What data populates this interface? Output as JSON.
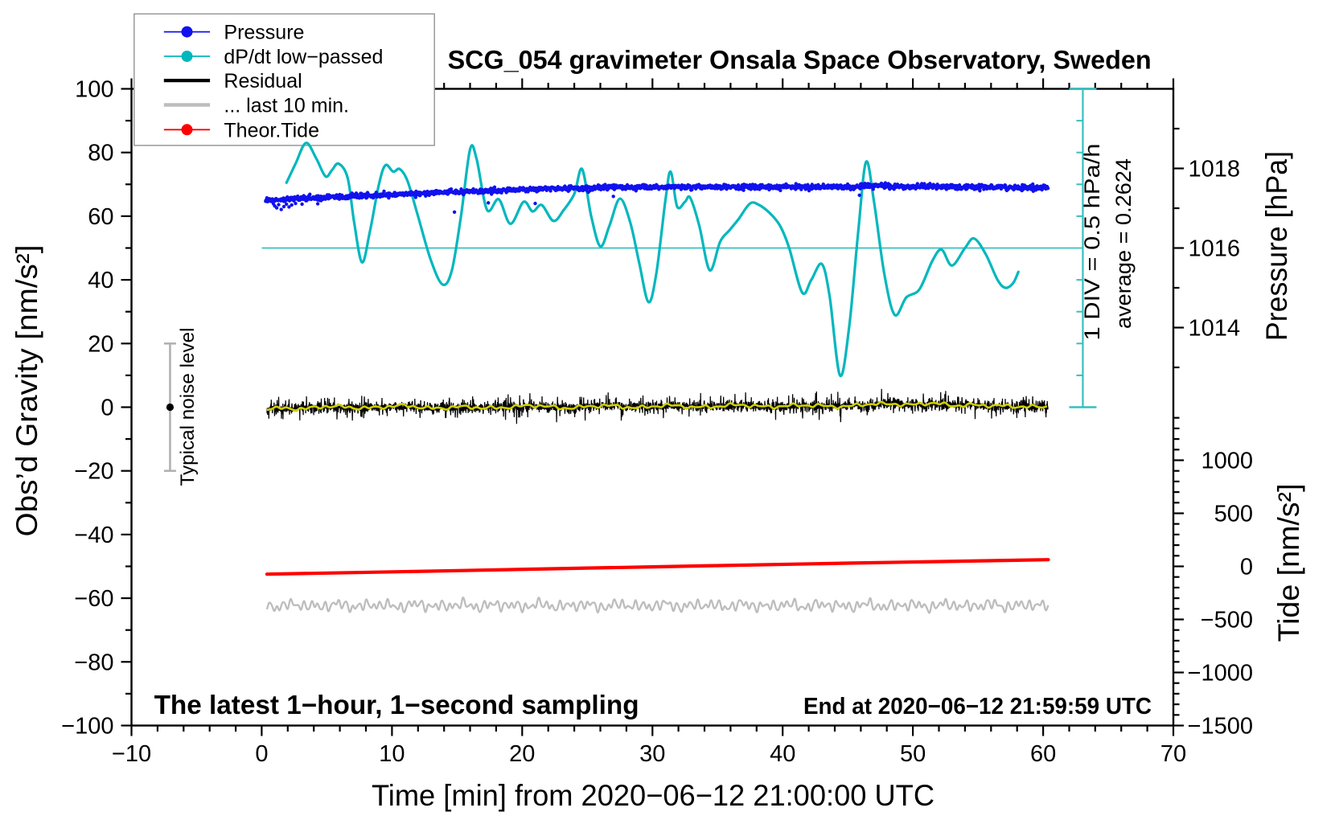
{
  "chart_data": {
    "type": "line",
    "title": "SCG_054 gravimeter Onsala Space Observatory, Sweden",
    "xlabel": "Time [min] from 2020−06−12 21:00:00 UTC",
    "ylabel_left": "Obs’d Gravity [nm/s²]",
    "ylabel_right_pressure": "Pressure [hPa]",
    "ylabel_right_tide": "Tide [nm/s²]",
    "annotation_bottom_left": "The latest 1−hour, 1−second sampling",
    "annotation_bottom_right": "End at 2020−06−12 21:59:59 UTC",
    "annotation_div": "1 DIV = 0.5 hPa/h",
    "annotation_average": "average = 0.2624",
    "annotation_noise": "Typical noise level",
    "xlim": [
      -10,
      70
    ],
    "ylim_left": [
      -100,
      100
    ],
    "x_axis": {
      "major_step": 10,
      "minor_step": 2,
      "labels": [
        "−10",
        "0",
        "10",
        "20",
        "30",
        "40",
        "50",
        "60",
        "70"
      ],
      "label_values": [
        -10,
        0,
        10,
        20,
        30,
        40,
        50,
        60,
        70
      ]
    },
    "y_axis_left": {
      "major_step": 20,
      "minor_step": 10,
      "labels": [
        "100",
        "80",
        "60",
        "40",
        "20",
        "0",
        "−20",
        "−40",
        "−60",
        "−80",
        "−100"
      ],
      "label_values": [
        100,
        80,
        60,
        40,
        20,
        0,
        -20,
        -40,
        -60,
        -80,
        -100
      ]
    },
    "pressure_axis": {
      "unit": "hPa",
      "gravity_of_1016": 50,
      "gravity_per_hPa": 12.5,
      "major_labels": [
        "1018",
        "1016",
        "1014"
      ],
      "major_values": [
        1018,
        1016,
        1014
      ],
      "minor_values": [
        1019,
        1017,
        1015,
        1013
      ]
    },
    "tide_axis": {
      "unit": "nm/s2",
      "tide_per_gravity": 30,
      "tide_at_gravity_minus50": 0,
      "major_labels": [
        "1000",
        "500",
        "0",
        "−500",
        "−1000",
        "−1500"
      ],
      "major_values": [
        1000,
        500,
        0,
        -500,
        -1000,
        -1500
      ],
      "minor_from": 1400,
      "minor_to": -1500,
      "minor_step": 100
    },
    "legend": {
      "entries": [
        {
          "label": "Pressure",
          "color": "#1111ee",
          "lw": 1.8,
          "marker": true
        },
        {
          "label": "dP/dt low−passed",
          "color": "#00b7bd",
          "lw": 1.8,
          "marker": true
        },
        {
          "label": "Residual",
          "color": "#000000",
          "lw": 4.2,
          "marker": false
        },
        {
          "label": "... last 10 min.",
          "color": "#bdbdbd",
          "lw": 4.5,
          "marker": false
        },
        {
          "label": "Theor.Tide",
          "color": "#ff0000",
          "lw": 1.8,
          "marker": true
        }
      ]
    },
    "ref_line": {
      "gravity": 50,
      "x_from": 0,
      "x_to": 63.05,
      "color": "#35c0c0",
      "lw": 1.8
    },
    "scale_bar": {
      "x": 63.05,
      "gravity_from": 0,
      "gravity_to": 100,
      "tick_step_gravity": 10,
      "div_hPa_per_h": 0.5,
      "color": "#35c0c0",
      "lw": 2.2,
      "cap_halfwidth": 17,
      "tick_len": 8
    },
    "noise_bar": {
      "x": -7.04,
      "gravity_from": -20,
      "gravity_to": 20,
      "dot_gravity": 0,
      "color": "#b2b2b2",
      "lw": 2.6,
      "cap_halfwidth": 7.5,
      "dot_r": 4.6
    },
    "series": {
      "pressure": {
        "name": "Pressure",
        "color": "#1111ee",
        "style": "dots",
        "dot_r": 2.2,
        "t_start": 0.3,
        "t_end": 60.4,
        "dt": 0.0333,
        "noise_sd": 0.38,
        "seed": 101,
        "trend": [
          [
            0.3,
            64.9
          ],
          [
            2,
            65.3
          ],
          [
            4,
            65.75
          ],
          [
            6,
            66.1
          ],
          [
            8,
            66.45
          ],
          [
            10,
            66.75
          ],
          [
            12,
            67.1
          ],
          [
            14,
            67.5
          ],
          [
            16,
            67.8
          ],
          [
            18,
            68.1
          ],
          [
            20,
            68.4
          ],
          [
            22,
            68.65
          ],
          [
            24,
            68.85
          ],
          [
            26,
            69.0
          ],
          [
            28,
            69.1
          ],
          [
            30,
            69.15
          ],
          [
            32,
            69.15
          ],
          [
            34,
            69.2
          ],
          [
            36,
            69.2
          ],
          [
            38,
            69.25
          ],
          [
            40,
            69.2
          ],
          [
            42,
            69.1
          ],
          [
            44,
            69.25
          ],
          [
            45.3,
            69.0
          ],
          [
            46.3,
            69.5
          ],
          [
            47.2,
            69.6
          ],
          [
            48.2,
            69.3
          ],
          [
            50,
            69.25
          ],
          [
            52,
            69.3
          ],
          [
            54,
            69.2
          ],
          [
            56,
            69.15
          ],
          [
            58,
            69.0
          ],
          [
            60.4,
            68.9
          ]
        ],
        "outliers": [
          [
            0.9,
            63.9
          ],
          [
            1.0,
            63.2
          ],
          [
            1.15,
            62.6
          ],
          [
            1.3,
            63.6
          ],
          [
            1.5,
            62.1
          ],
          [
            1.7,
            63.0
          ],
          [
            1.9,
            63.8
          ],
          [
            2.1,
            62.9
          ],
          [
            2.3,
            63.5
          ],
          [
            2.6,
            64.0
          ],
          [
            3.1,
            63.8
          ],
          [
            4.3,
            63.9
          ],
          [
            14.8,
            61.3
          ],
          [
            17.4,
            64.2
          ],
          [
            21.0,
            64.0
          ],
          [
            27.0,
            66.2
          ],
          [
            45.9,
            66.6
          ]
        ]
      },
      "dpdt_lowpassed": {
        "name": "dP/dt low-passed",
        "color": "#00b7bd",
        "style": "smooth",
        "lw": 3.2,
        "points": [
          [
            1.9,
            70.5
          ],
          [
            2.6,
            76.5
          ],
          [
            3.4,
            83
          ],
          [
            4.2,
            78
          ],
          [
            4.9,
            72.5
          ],
          [
            5.4,
            74.5
          ],
          [
            5.9,
            76.5
          ],
          [
            6.6,
            72
          ],
          [
            7.1,
            58
          ],
          [
            7.7,
            45.5
          ],
          [
            8.3,
            55
          ],
          [
            9.0,
            70
          ],
          [
            9.5,
            76
          ],
          [
            10.1,
            74
          ],
          [
            10.6,
            74.8
          ],
          [
            11.2,
            71
          ],
          [
            12.0,
            60
          ],
          [
            13.0,
            46
          ],
          [
            13.9,
            38.5
          ],
          [
            14.6,
            43
          ],
          [
            15.3,
            60
          ],
          [
            16.0,
            81
          ],
          [
            16.5,
            78
          ],
          [
            17.3,
            62
          ],
          [
            18.2,
            65.3
          ],
          [
            19.1,
            57.6
          ],
          [
            20.1,
            64.5
          ],
          [
            20.8,
            61.5
          ],
          [
            21.5,
            63.5
          ],
          [
            22.4,
            58.5
          ],
          [
            23.2,
            62
          ],
          [
            24.0,
            67
          ],
          [
            24.6,
            74.8
          ],
          [
            25.3,
            60
          ],
          [
            26.0,
            50.5
          ],
          [
            26.7,
            57
          ],
          [
            27.5,
            65.5
          ],
          [
            28.3,
            58
          ],
          [
            29.0,
            45
          ],
          [
            29.7,
            33
          ],
          [
            30.3,
            42
          ],
          [
            31.0,
            65
          ],
          [
            31.4,
            74
          ],
          [
            31.9,
            63
          ],
          [
            32.5,
            64.5
          ],
          [
            32.9,
            65.8
          ],
          [
            33.6,
            57
          ],
          [
            34.4,
            43
          ],
          [
            35.2,
            52
          ],
          [
            35.9,
            55.5
          ],
          [
            36.6,
            59
          ],
          [
            37.5,
            64
          ],
          [
            38.2,
            63.5
          ],
          [
            39.0,
            61
          ],
          [
            39.8,
            57
          ],
          [
            40.5,
            50
          ],
          [
            41.5,
            36
          ],
          [
            42.2,
            40
          ],
          [
            43.0,
            45
          ],
          [
            43.6,
            35
          ],
          [
            44.4,
            10
          ],
          [
            45.1,
            25
          ],
          [
            45.8,
            55
          ],
          [
            46.4,
            77
          ],
          [
            47.0,
            65
          ],
          [
            47.8,
            42
          ],
          [
            48.6,
            29
          ],
          [
            49.5,
            34.5
          ],
          [
            50.5,
            37
          ],
          [
            51.5,
            46
          ],
          [
            52.2,
            49.5
          ],
          [
            53.0,
            44.5
          ],
          [
            54.0,
            50
          ],
          [
            54.7,
            53
          ],
          [
            55.6,
            48
          ],
          [
            56.5,
            40
          ],
          [
            57.1,
            37.5
          ],
          [
            57.7,
            39
          ],
          [
            58.1,
            42.5
          ]
        ]
      },
      "residual": {
        "name": "Residual",
        "color": "#000000",
        "style": "noisy",
        "lw": 1.25,
        "t_start": 0.4,
        "t_end": 60.4,
        "dt": 0.0167,
        "noise_sd": 0.8,
        "spike_p": 0.1,
        "spike_amp_min": 1.1,
        "spike_amp_max": 3.3,
        "seed": 202
      },
      "residual_smooth": {
        "name": "Residual low-passed",
        "color": "#cfcf00",
        "style": "smooth",
        "lw": 2.6,
        "wiggle": [
          [
            0.3,
            0.97,
            1.1
          ],
          [
            0.26,
            2.31,
            3.9
          ],
          [
            0.2,
            5.07,
            0.7
          ],
          [
            0.12,
            0.61,
            2.0
          ]
        ],
        "points": [
          [
            0.4,
            -0.6
          ],
          [
            3,
            -0.3
          ],
          [
            5,
            0.2
          ],
          [
            7,
            -0.2
          ],
          [
            9,
            0.1
          ],
          [
            11,
            0.3
          ],
          [
            13,
            -0.2
          ],
          [
            15,
            0.0
          ],
          [
            17,
            -0.3
          ],
          [
            19,
            0.2
          ],
          [
            21,
            0.35
          ],
          [
            23,
            -0.1
          ],
          [
            25,
            0.15
          ],
          [
            27,
            0.35
          ],
          [
            29,
            0.0
          ],
          [
            31,
            0.4
          ],
          [
            33,
            0.2
          ],
          [
            35,
            0.25
          ],
          [
            37,
            0.6
          ],
          [
            39,
            0.3
          ],
          [
            41,
            0.35
          ],
          [
            43,
            0.55
          ],
          [
            45,
            0.25
          ],
          [
            47,
            0.9
          ],
          [
            48.5,
            1.2
          ],
          [
            50,
            0.8
          ],
          [
            51.5,
            1.1
          ],
          [
            53,
            0.6
          ],
          [
            54.5,
            0.9
          ],
          [
            56,
            0.3
          ],
          [
            57.5,
            0.2
          ],
          [
            59,
            0.35
          ],
          [
            60.4,
            0.1
          ]
        ]
      },
      "last10": {
        "name": "... last 10 min.",
        "color": "#bdbdbd",
        "style": "wave",
        "lw": 2.3,
        "t_start": 0.4,
        "t_end": 60.4,
        "dt": 0.05,
        "mean": -62.3,
        "seed": 303,
        "components": [
          [
            0.95,
            0.53,
            0.4
          ],
          [
            0.62,
            0.82,
            2.2
          ],
          [
            0.5,
            1.93,
            1.1
          ],
          [
            0.3,
            0.34,
            5.0
          ],
          [
            0.33,
            3.13,
            2.6
          ]
        ]
      },
      "theor_tide": {
        "name": "Theor.Tide",
        "color": "#ff0000",
        "style": "smooth",
        "lw": 4.2,
        "points": [
          [
            0.4,
            -52.45
          ],
          [
            15,
            -51.35
          ],
          [
            30,
            -50.15
          ],
          [
            45,
            -49.0
          ],
          [
            60.4,
            -47.9
          ]
        ]
      }
    }
  }
}
